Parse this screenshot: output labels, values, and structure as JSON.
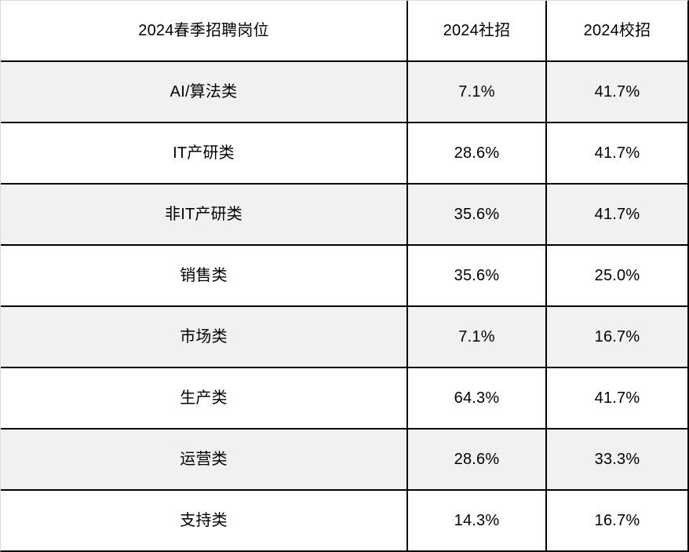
{
  "colors": {
    "grid_line": "#000000",
    "outer_faint_edge": "#d9d9d9",
    "shaded_row_bg": "#f1f1f1",
    "plain_row_bg": "#ffffff",
    "text": "#000000"
  },
  "table": {
    "headers": [
      "2024春季招聘岗位",
      "2024社招",
      "2024校招"
    ],
    "rows": [
      {
        "label": "AI/算法类",
        "social": "7.1%",
        "campus": "41.7%"
      },
      {
        "label": "IT产研类",
        "social": "28.6%",
        "campus": "41.7%"
      },
      {
        "label": "非IT产研类",
        "social": "35.6%",
        "campus": "41.7%"
      },
      {
        "label": "销售类",
        "social": "35.6%",
        "campus": "25.0%"
      },
      {
        "label": "市场类",
        "social": "7.1%",
        "campus": "16.7%"
      },
      {
        "label": "生产类",
        "social": "64.3%",
        "campus": "41.7%"
      },
      {
        "label": "运营类",
        "social": "28.6%",
        "campus": "33.3%"
      },
      {
        "label": "支持类",
        "social": "14.3%",
        "campus": "16.7%"
      }
    ]
  },
  "chart_data": {
    "type": "table",
    "title": "2024春季招聘岗位",
    "columns": [
      "2024春季招聘岗位",
      "2024社招",
      "2024校招"
    ],
    "categories": [
      "AI/算法类",
      "IT产研类",
      "非IT产研类",
      "销售类",
      "市场类",
      "生产类",
      "运营类",
      "支持类"
    ],
    "series": [
      {
        "name": "2024社招",
        "values": [
          7.1,
          28.6,
          35.6,
          35.6,
          7.1,
          64.3,
          28.6,
          14.3
        ]
      },
      {
        "name": "2024校招",
        "values": [
          41.7,
          41.7,
          41.7,
          25.0,
          16.7,
          41.7,
          33.3,
          16.7
        ]
      }
    ],
    "rows": [
      [
        "AI/算法类",
        "7.1%",
        "41.7%"
      ],
      [
        "IT产研类",
        "28.6%",
        "41.7%"
      ],
      [
        "非IT产研类",
        "35.6%",
        "41.7%"
      ],
      [
        "销售类",
        "35.6%",
        "25.0%"
      ],
      [
        "市场类",
        "7.1%",
        "16.7%"
      ],
      [
        "生产类",
        "64.3%",
        "41.7%"
      ],
      [
        "运营类",
        "28.6%",
        "33.3%"
      ],
      [
        "支持类",
        "14.3%",
        "16.7%"
      ]
    ],
    "layout": {
      "grid": true,
      "shaded_alternate_rows": true,
      "value_format": "percent"
    }
  }
}
